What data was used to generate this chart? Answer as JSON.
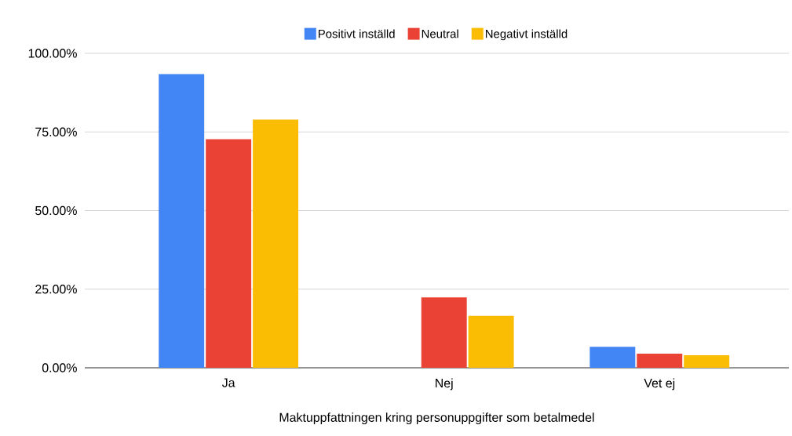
{
  "chart_data": {
    "type": "bar",
    "xlabel": "Maktuppfattningen kring personuppgifter som betalmedel",
    "categories": [
      "Ja",
      "Nej",
      "Vet ej"
    ],
    "series": [
      {
        "name": "Positivt inställd",
        "color": "#4285f4",
        "values": [
          93.4,
          0,
          6.7
        ]
      },
      {
        "name": "Neutral",
        "color": "#ea4335",
        "values": [
          72.7,
          22.4,
          4.5
        ]
      },
      {
        "name": "Negativt inställd",
        "color": "#fbbc04",
        "values": [
          78.9,
          16.5,
          4.0
        ]
      }
    ],
    "ylim": [
      0,
      100
    ],
    "yticks": [
      {
        "value": 0,
        "label": "0.00%"
      },
      {
        "value": 25,
        "label": "25.00%"
      },
      {
        "value": 50,
        "label": "50.00%"
      },
      {
        "value": 75,
        "label": "75.00%"
      },
      {
        "value": 100,
        "label": "100.00%"
      }
    ],
    "grid": "y",
    "legend": "top"
  }
}
